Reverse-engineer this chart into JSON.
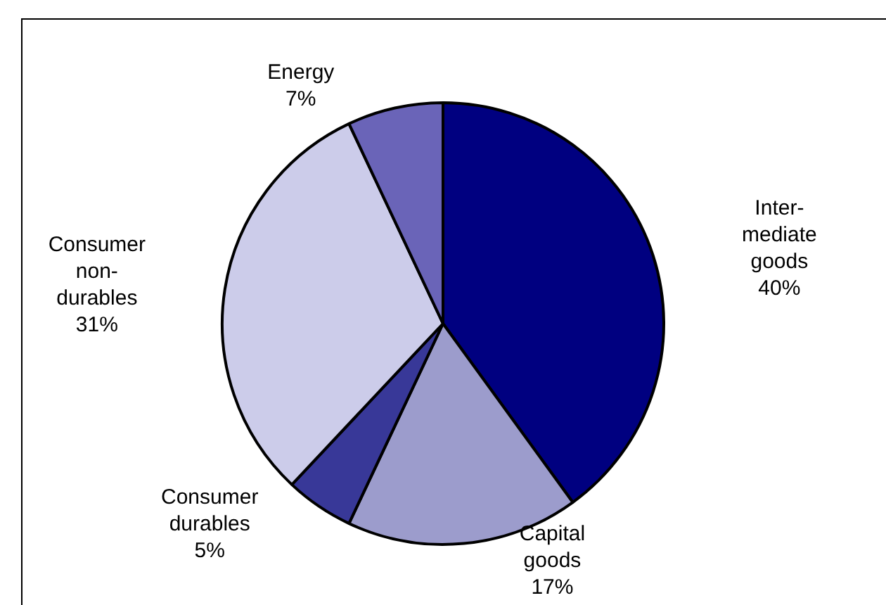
{
  "chart_data": {
    "type": "pie",
    "categories": [
      "Inter-mediate goods",
      "Capital goods",
      "Consumer durables",
      "Consumer non-durables",
      "Energy"
    ],
    "values": [
      40,
      17,
      5,
      31,
      7
    ],
    "value_labels": [
      "40%",
      "17%",
      "5%",
      "31%",
      "7%"
    ],
    "colors": [
      "#000080",
      "#9c9ccc",
      "#383898",
      "#ccccea",
      "#6a64b8"
    ]
  }
}
